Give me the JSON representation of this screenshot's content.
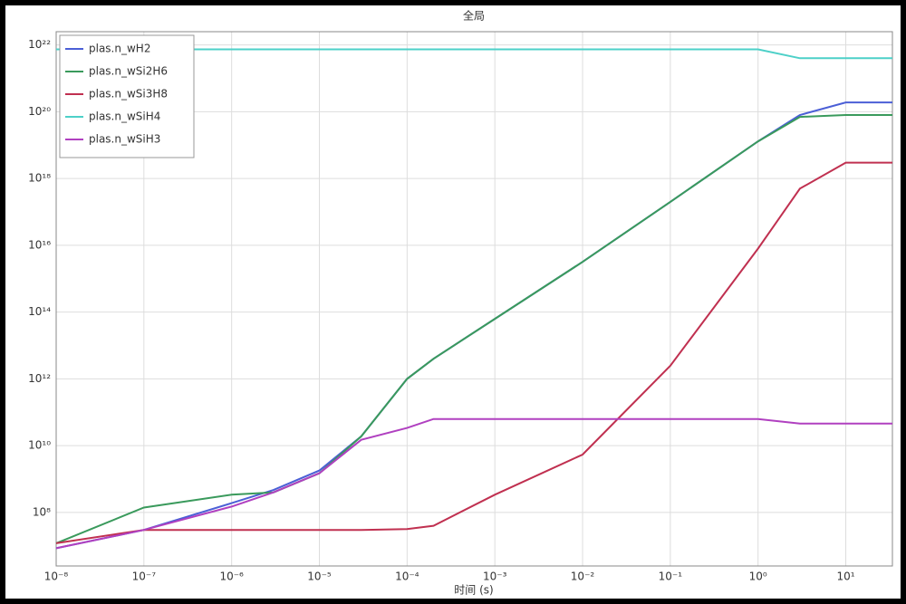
{
  "chart_data": {
    "type": "line",
    "title": "全局",
    "xlabel": "时间 (s)",
    "log_x": true,
    "log_y": true,
    "grid": true,
    "legend": "upper-left",
    "x": [
      1e-08,
      1e-07,
      1e-06,
      3e-06,
      1e-05,
      3e-05,
      0.0001,
      0.0002,
      0.001,
      0.01,
      0.1,
      1,
      3,
      10,
      34
    ],
    "series": [
      {
        "name": "plas.n_wH2",
        "color": "#4b5fd6",
        "values": [
          8500000.0,
          30000000.0,
          190000000.0,
          470000000.0,
          1800000000.0,
          19000000000.0,
          1000000000000.0,
          4000000000000.0,
          63000000000000.0,
          3200000000000000.0,
          2e+17,
          1.3e+19,
          8e+19,
          1.9e+20,
          1.9e+20
        ]
      },
      {
        "name": "plas.n_wSi2H6",
        "color": "#3a9a5c",
        "values": [
          12000000.0,
          140000000.0,
          340000000.0,
          400000000.0,
          1500000000.0,
          19000000000.0,
          1000000000000.0,
          4000000000000.0,
          63000000000000.0,
          3200000000000000.0,
          2e+17,
          1.3e+19,
          7e+19,
          8e+19,
          8e+19
        ]
      },
      {
        "name": "plas.n_wSi3H8",
        "color": "#c03050",
        "values": [
          12000000.0,
          30000000.0,
          30000000.0,
          30000000.0,
          30000000.0,
          30000000.0,
          32000000.0,
          40000000.0,
          340000000.0,
          5400000000.0,
          2500000000000.0,
          8000000000000000.0,
          5e+17,
          3e+18,
          3e+18
        ]
      },
      {
        "name": "plas.n_wSiH4",
        "color": "#4dd0c8",
        "values": [
          7.4e+21,
          7.4e+21,
          7.4e+21,
          7.4e+21,
          7.4e+21,
          7.4e+21,
          7.4e+21,
          7.4e+21,
          7.4e+21,
          7.4e+21,
          7.4e+21,
          7.4e+21,
          4e+21,
          4e+21,
          4e+21
        ]
      },
      {
        "name": "plas.n_wSiH3",
        "color": "#b040c0",
        "values": [
          8500000.0,
          30000000.0,
          150000000.0,
          400000000.0,
          1500000000.0,
          15000000000.0,
          34000000000.0,
          63000000000.0,
          63000000000.0,
          63000000000.0,
          63000000000.0,
          63000000000.0,
          46000000000.0,
          46000000000.0,
          46000000000.0
        ]
      }
    ],
    "xlim": [
      1e-08,
      34
    ],
    "ylim": [
      2500000.0,
      2.5e+22
    ],
    "xticks": [
      {
        "value": 1e-08,
        "label": "10⁻⁸"
      },
      {
        "value": 1e-07,
        "label": "10⁻⁷"
      },
      {
        "value": 1e-06,
        "label": "10⁻⁶"
      },
      {
        "value": 1e-05,
        "label": "10⁻⁵"
      },
      {
        "value": 0.0001,
        "label": "10⁻⁴"
      },
      {
        "value": 0.001,
        "label": "10⁻³"
      },
      {
        "value": 0.01,
        "label": "10⁻²"
      },
      {
        "value": 0.1,
        "label": "10⁻¹"
      },
      {
        "value": 1,
        "label": "10⁰"
      },
      {
        "value": 10,
        "label": "10¹"
      }
    ],
    "yticks": [
      {
        "value": 100000000.0,
        "label": "10⁸"
      },
      {
        "value": 10000000000.0,
        "label": "10¹⁰"
      },
      {
        "value": 1000000000000.0,
        "label": "10¹²"
      },
      {
        "value": 100000000000000.0,
        "label": "10¹⁴"
      },
      {
        "value": 1e+16,
        "label": "10¹⁶"
      },
      {
        "value": 1e+18,
        "label": "10¹⁸"
      },
      {
        "value": 1e+20,
        "label": "10²⁰"
      },
      {
        "value": 1e+22,
        "label": "10²²"
      }
    ]
  }
}
